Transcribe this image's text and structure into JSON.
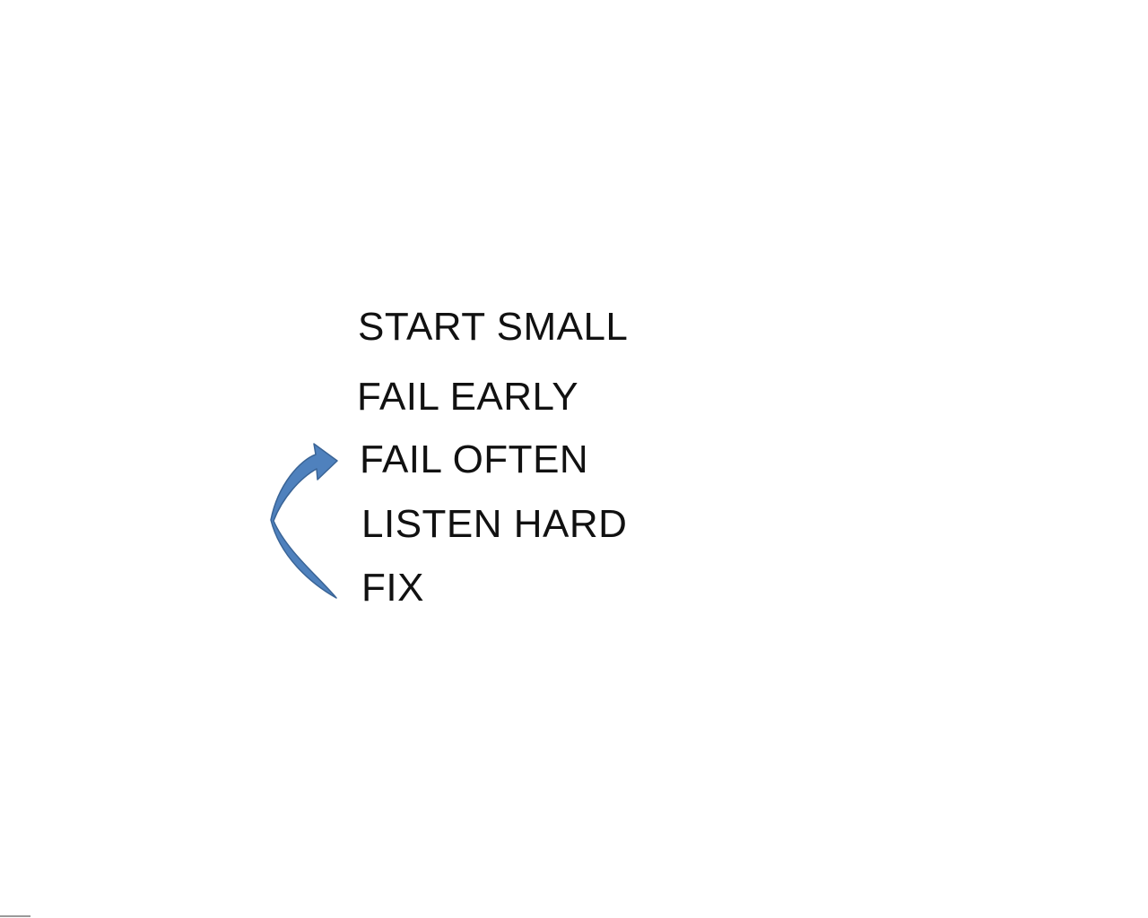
{
  "slide": {
    "lines": [
      "START SMALL",
      "FAIL EARLY",
      "FAIL OFTEN",
      "LISTEN HARD",
      "FIX"
    ]
  },
  "arrow": {
    "icon": "curved-up-arrow-icon",
    "fill": "#4F81BD",
    "stroke": "#3A6496"
  }
}
